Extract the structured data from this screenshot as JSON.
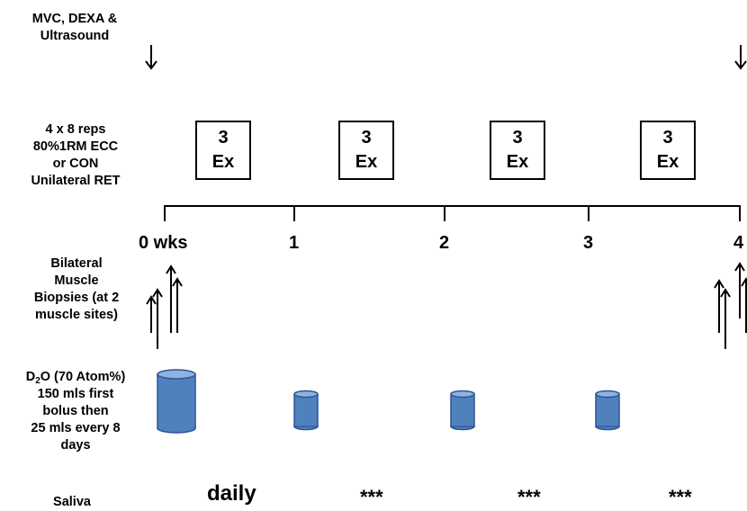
{
  "row_labels": {
    "assessment": [
      "MVC, DEXA &",
      "Ultrasound"
    ],
    "training": [
      "4 x 8 reps",
      "80%1RM ECC",
      "or CON",
      "Unilateral RET"
    ],
    "biopsy": [
      "Bilateral",
      "Muscle",
      "Biopsies (at 2",
      "muscle sites)"
    ],
    "d2o": {
      "prefix": "D",
      "sub": "2",
      "suffix": "O (70 Atom%)",
      "rest": [
        "150 mls first",
        "bolus then",
        "25 mls every 8",
        "days"
      ]
    },
    "saliva": "Saliva"
  },
  "exercise_boxes": [
    {
      "count": "3",
      "unit": "Ex"
    },
    {
      "count": "3",
      "unit": "Ex"
    },
    {
      "count": "3",
      "unit": "Ex"
    },
    {
      "count": "3",
      "unit": "Ex"
    }
  ],
  "timeline": {
    "ticks": [
      "0 wks",
      "1",
      "2",
      "3",
      "4"
    ]
  },
  "saliva_frequency": [
    "daily",
    "***",
    "***",
    "***"
  ],
  "colors": {
    "cylinder_fill": "#4f81bd",
    "cylinder_top": "#8db3e2",
    "cylinder_stroke": "#2f5597"
  }
}
